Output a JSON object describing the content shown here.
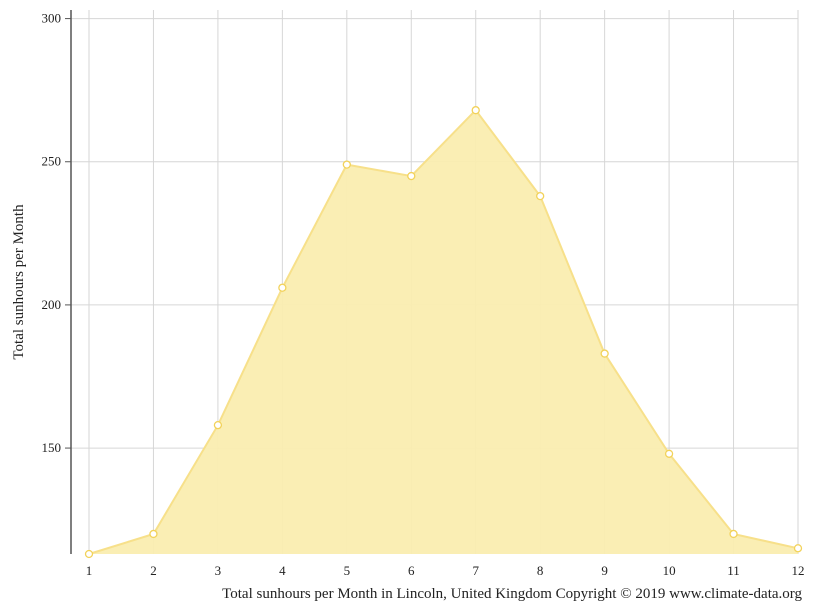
{
  "chart_data": {
    "type": "area",
    "title": "",
    "ylabel": "Total sunhours per Month",
    "xlabel": "",
    "caption": "Total sunhours per Month in Lincoln, United Kingdom Copyright © 2019 www.climate-data.org",
    "x": [
      1,
      2,
      3,
      4,
      5,
      6,
      7,
      8,
      9,
      10,
      11,
      12
    ],
    "series": [
      {
        "values": [
          113,
          120,
          158,
          206,
          249,
          245,
          268,
          238,
          183,
          148,
          120,
          115
        ]
      }
    ],
    "xlim": [
      1,
      12
    ],
    "ylim": [
      113,
      303
    ],
    "yticks": [
      150,
      200,
      250,
      300
    ],
    "grid": true,
    "colors": {
      "fill": "#faedb0",
      "line": "#f7e08a",
      "marker_edge": "#f2d25a",
      "grid": "#d6d6d6",
      "axis": "#555555"
    }
  }
}
